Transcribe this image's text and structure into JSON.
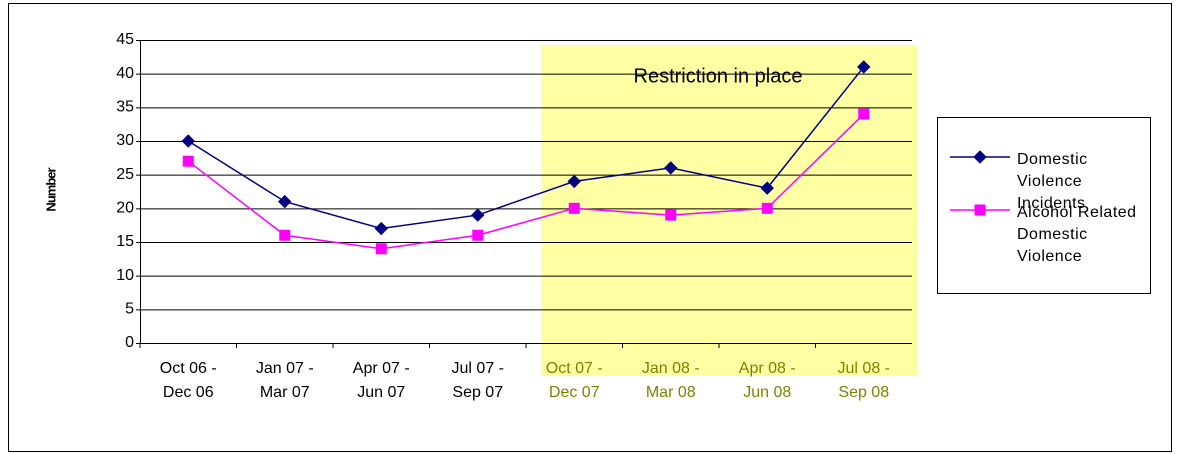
{
  "chart_data": {
    "type": "line",
    "y_label": "Number",
    "annotation": "Restriction in place",
    "categories": [
      "Oct 06 - Dec 06",
      "Jan 07 - Mar 07",
      "Apr 07 - Jun 07",
      "Jul 07 - Sep 07",
      "Oct 07 - Dec 07",
      "Jan 08 - Mar 08",
      "Apr 08 - Jun 08",
      "Jul 08 - Sep 08"
    ],
    "series": [
      {
        "name": "Domestic Violence Incidents",
        "color": "#000080",
        "marker": "diamond",
        "values": [
          30,
          21,
          17,
          19,
          24,
          26,
          23,
          41
        ]
      },
      {
        "name": "Alcohol Related Domestic Violence",
        "color": "#ff00ff",
        "marker": "square",
        "values": [
          27,
          16,
          14,
          16,
          20,
          19,
          20,
          34
        ]
      }
    ],
    "ylim": [
      0,
      45
    ],
    "yticks": [
      0,
      5,
      10,
      15,
      20,
      25,
      30,
      35,
      40,
      45
    ],
    "grid": true,
    "legend": "right"
  }
}
